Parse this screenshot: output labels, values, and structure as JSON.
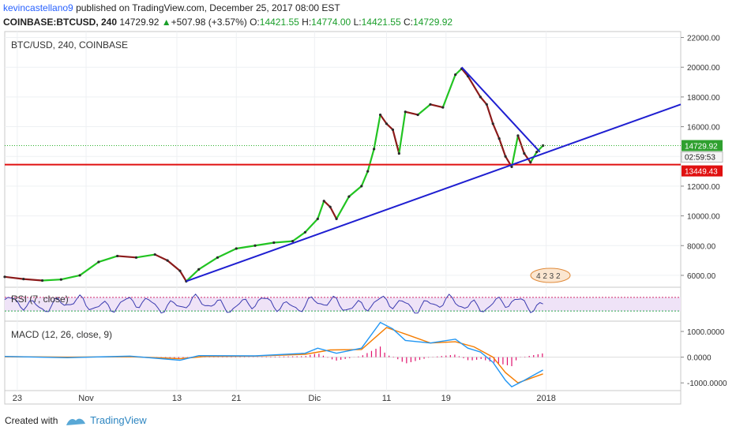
{
  "header": {
    "author": "kevincastellano9",
    "published_text": "published on TradingView.com, December 25, 2017 08:00 EST",
    "symbol": "COINBASE:BTCUSD, 240",
    "last": "14729.92",
    "change_arrow": "▲",
    "change": "+507.98 (+3.57%)",
    "o_label": "O:",
    "o": "14421.55",
    "h_label": "H:",
    "h": "14774.00",
    "l_label": "L:",
    "l": "14421.55",
    "c_label": "C:",
    "c": "14729.92"
  },
  "chart_data": {
    "type": "line",
    "title": "BTC/USD, 240, COINBASE",
    "price_axis_ticks": [
      "22000.00",
      "20000.00",
      "18000.00",
      "16000.00",
      "14000.00",
      "12000.00",
      "10000.00",
      "8000.00",
      "6000.00"
    ],
    "price_ylim": [
      5200,
      22400
    ],
    "price_labels": {
      "last": "14729.92",
      "countdown": "02:59:53",
      "support": "13449.43"
    },
    "last_price": 14729.92,
    "support_level": 13449.43,
    "x_tick_labels": [
      "23",
      "Nov",
      "13",
      "21",
      "Dic",
      "11",
      "19",
      "2018"
    ],
    "price_series": [
      {
        "t": 0,
        "p": 5900
      },
      {
        "t": 3,
        "p": 5750
      },
      {
        "t": 6,
        "p": 5650
      },
      {
        "t": 9,
        "p": 5720
      },
      {
        "t": 12,
        "p": 6000
      },
      {
        "t": 15,
        "p": 6900
      },
      {
        "t": 18,
        "p": 7300
      },
      {
        "t": 21,
        "p": 7200
      },
      {
        "t": 24,
        "p": 7400
      },
      {
        "t": 26,
        "p": 7000
      },
      {
        "t": 28,
        "p": 6300
      },
      {
        "t": 29,
        "p": 5600
      },
      {
        "t": 31,
        "p": 6400
      },
      {
        "t": 34,
        "p": 7200
      },
      {
        "t": 37,
        "p": 7800
      },
      {
        "t": 40,
        "p": 8000
      },
      {
        "t": 43,
        "p": 8200
      },
      {
        "t": 46,
        "p": 8300
      },
      {
        "t": 48,
        "p": 8900
      },
      {
        "t": 50,
        "p": 9800
      },
      {
        "t": 51,
        "p": 11000
      },
      {
        "t": 52,
        "p": 10600
      },
      {
        "t": 53,
        "p": 9800
      },
      {
        "t": 55,
        "p": 11300
      },
      {
        "t": 57,
        "p": 12000
      },
      {
        "t": 58,
        "p": 13000
      },
      {
        "t": 59,
        "p": 14500
      },
      {
        "t": 60,
        "p": 16800
      },
      {
        "t": 61,
        "p": 16200
      },
      {
        "t": 62,
        "p": 15800
      },
      {
        "t": 63,
        "p": 14200
      },
      {
        "t": 64,
        "p": 17000
      },
      {
        "t": 66,
        "p": 16800
      },
      {
        "t": 68,
        "p": 17500
      },
      {
        "t": 70,
        "p": 17300
      },
      {
        "t": 72,
        "p": 19500
      },
      {
        "t": 73,
        "p": 19900
      },
      {
        "t": 74,
        "p": 19400
      },
      {
        "t": 76,
        "p": 18000
      },
      {
        "t": 77,
        "p": 17500
      },
      {
        "t": 78,
        "p": 16200
      },
      {
        "t": 79,
        "p": 15200
      },
      {
        "t": 80,
        "p": 14000
      },
      {
        "t": 81,
        "p": 13300
      },
      {
        "t": 82,
        "p": 15400
      },
      {
        "t": 83,
        "p": 14200
      },
      {
        "t": 84,
        "p": 13600
      },
      {
        "t": 85,
        "p": 14300
      },
      {
        "t": 86,
        "p": 14730
      }
    ],
    "trendlines": [
      {
        "name": "ascending support",
        "color": "#1f1fd1",
        "from": {
          "t": 29,
          "p": 5600
        },
        "to": {
          "t": 108,
          "p": 17500
        }
      },
      {
        "name": "descending resistance",
        "color": "#1f1fd1",
        "from": {
          "t": 73,
          "p": 20000
        },
        "to": {
          "t": 85.5,
          "p": 14300
        }
      }
    ],
    "rsi": {
      "label": "RSI (7, close)",
      "upper": 70,
      "lower": 30
    },
    "macd": {
      "label": "MACD (12, 26, close, 9)",
      "axis_ticks": [
        "1000.0000",
        "0.0000",
        "-1000.0000"
      ],
      "ylim": [
        -1300,
        1400
      ],
      "macd_line": [
        {
          "t": 0,
          "v": 30
        },
        {
          "t": 10,
          "v": -20
        },
        {
          "t": 20,
          "v": 40
        },
        {
          "t": 28,
          "v": -120
        },
        {
          "t": 31,
          "v": 60
        },
        {
          "t": 40,
          "v": 50
        },
        {
          "t": 48,
          "v": 150
        },
        {
          "t": 50,
          "v": 350
        },
        {
          "t": 53,
          "v": 150
        },
        {
          "t": 57,
          "v": 350
        },
        {
          "t": 60,
          "v": 1350
        },
        {
          "t": 62,
          "v": 1100
        },
        {
          "t": 64,
          "v": 650
        },
        {
          "t": 68,
          "v": 550
        },
        {
          "t": 72,
          "v": 700
        },
        {
          "t": 74,
          "v": 350
        },
        {
          "t": 76,
          "v": 200
        },
        {
          "t": 78,
          "v": -200
        },
        {
          "t": 80,
          "v": -900
        },
        {
          "t": 81,
          "v": -1150
        },
        {
          "t": 83,
          "v": -900
        },
        {
          "t": 86,
          "v": -500
        }
      ],
      "signal_line": [
        {
          "t": 0,
          "v": 20
        },
        {
          "t": 10,
          "v": 0
        },
        {
          "t": 20,
          "v": 20
        },
        {
          "t": 28,
          "v": -60
        },
        {
          "t": 32,
          "v": 30
        },
        {
          "t": 40,
          "v": 40
        },
        {
          "t": 48,
          "v": 110
        },
        {
          "t": 52,
          "v": 280
        },
        {
          "t": 57,
          "v": 300
        },
        {
          "t": 61,
          "v": 1150
        },
        {
          "t": 64,
          "v": 900
        },
        {
          "t": 68,
          "v": 550
        },
        {
          "t": 72,
          "v": 600
        },
        {
          "t": 75,
          "v": 400
        },
        {
          "t": 78,
          "v": 0
        },
        {
          "t": 80,
          "v": -600
        },
        {
          "t": 82,
          "v": -1000
        },
        {
          "t": 86,
          "v": -650
        }
      ]
    },
    "event_badge": "4 2 3 2",
    "colors": {
      "up": "#22c422",
      "down": "#8b1a1a",
      "trend": "#1f1fd1",
      "support": "#e01010",
      "rsi": "#3b3bb0",
      "macd": "#2196f3",
      "signal": "#f57c00",
      "hist": "#e0116d"
    }
  },
  "footer": {
    "created_with": "Created with",
    "brand": "TradingView"
  }
}
